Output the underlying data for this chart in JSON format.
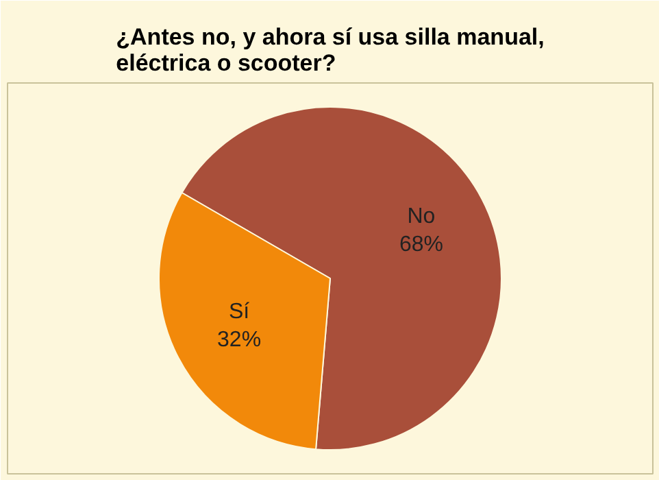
{
  "chart_data": {
    "type": "pie",
    "title": "¿Antes no, y ahora sí usa silla manual, eléctrica o scooter?",
    "categories": [
      "No",
      "Sí"
    ],
    "values": [
      68,
      32
    ],
    "colors": [
      "#a94f3a",
      "#f2890a"
    ],
    "value_labels": [
      "68%",
      "32%"
    ]
  }
}
